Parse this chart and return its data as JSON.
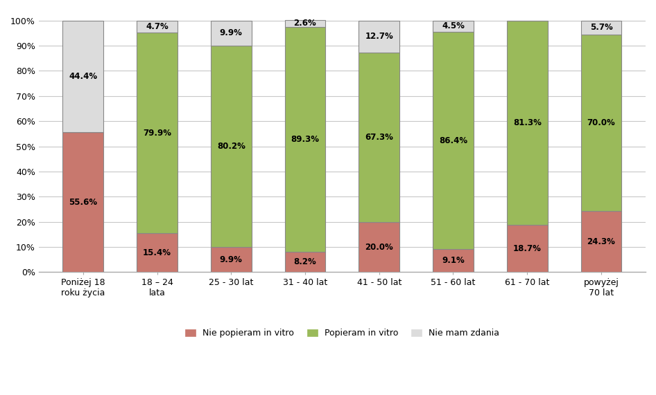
{
  "categories": [
    "Poniżej 18\nroku życia",
    "18 – 24\nlata",
    "25 - 30 lat",
    "31 - 40 lat",
    "41 - 50 lat",
    "51 - 60 lat",
    "61 - 70 lat",
    "powyżej\n70 lat"
  ],
  "nie_popieram": [
    55.6,
    15.4,
    9.9,
    8.2,
    20.0,
    9.1,
    18.7,
    24.3
  ],
  "popieram": [
    0.0,
    79.9,
    80.2,
    89.3,
    67.3,
    86.4,
    81.3,
    70.0
  ],
  "nie_mam_zdania": [
    44.4,
    4.7,
    9.9,
    2.6,
    12.7,
    4.5,
    0.0,
    5.7
  ],
  "color_nie_popieram": "#c8786e",
  "color_popieram": "#9aba5a",
  "color_nie_mam_zdania": "#dcdcdc",
  "color_background": "#ffffff",
  "color_grid": "#c8c8c8",
  "ylabel_ticks": [
    "0%",
    "10%",
    "20%",
    "30%",
    "40%",
    "50%",
    "60%",
    "70%",
    "80%",
    "90%",
    "100%"
  ],
  "ytick_vals": [
    0,
    10,
    20,
    30,
    40,
    50,
    60,
    70,
    80,
    90,
    100
  ],
  "legend_labels": [
    "Nie popieram in vitro",
    "Popieram in vitro",
    "Nie mam zdania"
  ],
  "bar_width": 0.55,
  "fontsize_labels": 8.5,
  "fontsize_ticks": 9,
  "fontsize_legend": 9
}
